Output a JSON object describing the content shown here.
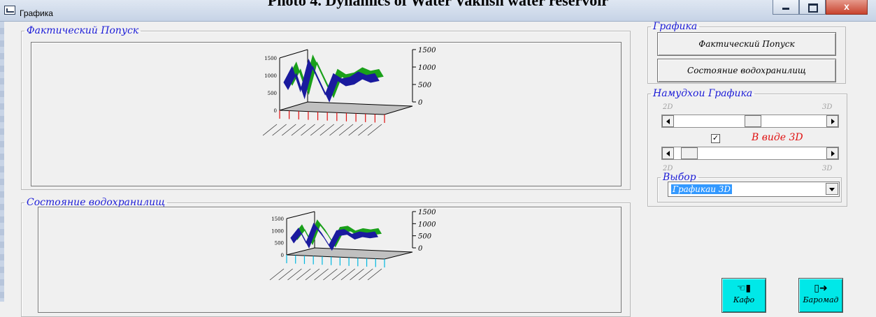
{
  "document": {
    "caption": "Photo 4. Dynamics of Water Vakhsh water reservoir"
  },
  "window": {
    "title": "Графика",
    "close_glyph": "x",
    "icon": "window-app-icon"
  },
  "groups": {
    "actual_release": {
      "legend": "Фактический Попуск"
    },
    "reservoir_state": {
      "legend": "Состояние водохранилищ"
    },
    "graphics": {
      "legend": "Графика"
    },
    "graph_view": {
      "legend": "Намудхои Графика"
    },
    "choice": {
      "legend": "Выбор"
    }
  },
  "buttons": {
    "actual_release": "Фактический Попуск",
    "reservoir_state": "Состояние водохранилищ",
    "kafo": "Кафо",
    "baromad": "Баромад"
  },
  "view_controls": {
    "label_2d": "2D",
    "label_3d": "3D",
    "checkbox_checked": true,
    "checkbox_mark": "✓",
    "checkbox_label": "В виде 3D",
    "slider1_value": 0.52,
    "slider2_value": 0.05
  },
  "select": {
    "value": "Графикаи 3D"
  },
  "colors": {
    "legend_text": "#1a1ad6",
    "checkbox_label": "#e01010",
    "series_front": "#1a1a9e",
    "series_back": "#1aa01a",
    "action_button": "#00e8e8",
    "selection": "#3399ff"
  },
  "icons": {
    "kafo": "pointing-hand-icon",
    "baromad": "exit-door-icon"
  },
  "chart_data": [
    {
      "type": "line",
      "right_axis_ticks": [
        "1500",
        "1000",
        "500",
        "0"
      ],
      "left_axis_ticks": [
        "1500",
        "1000",
        "500",
        "0"
      ],
      "series": [
        {
          "values": [
            800,
            1250,
            550,
            1450,
            950,
            450,
            1050,
            900,
            950,
            1100,
            1000,
            1050
          ]
        },
        {
          "values": [
            850,
            1300,
            600,
            1500,
            1000,
            500,
            1100,
            950,
            1000,
            1150,
            1050,
            1100
          ]
        }
      ],
      "ylim": [
        0,
        1500
      ]
    },
    {
      "type": "line",
      "right_axis_ticks": [
        "1500",
        "1000",
        "500",
        "0"
      ],
      "left_axis_ticks": [
        "1500",
        "1000",
        "500",
        "0"
      ],
      "series": [
        {
          "values": [
            700,
            1100,
            500,
            1300,
            900,
            400,
            1000,
            1050,
            850,
            950,
            900,
            950
          ]
        },
        {
          "values": [
            750,
            1150,
            550,
            1350,
            950,
            450,
            1050,
            1100,
            900,
            1000,
            950,
            1000
          ]
        }
      ],
      "ylim": [
        0,
        1500
      ]
    }
  ]
}
